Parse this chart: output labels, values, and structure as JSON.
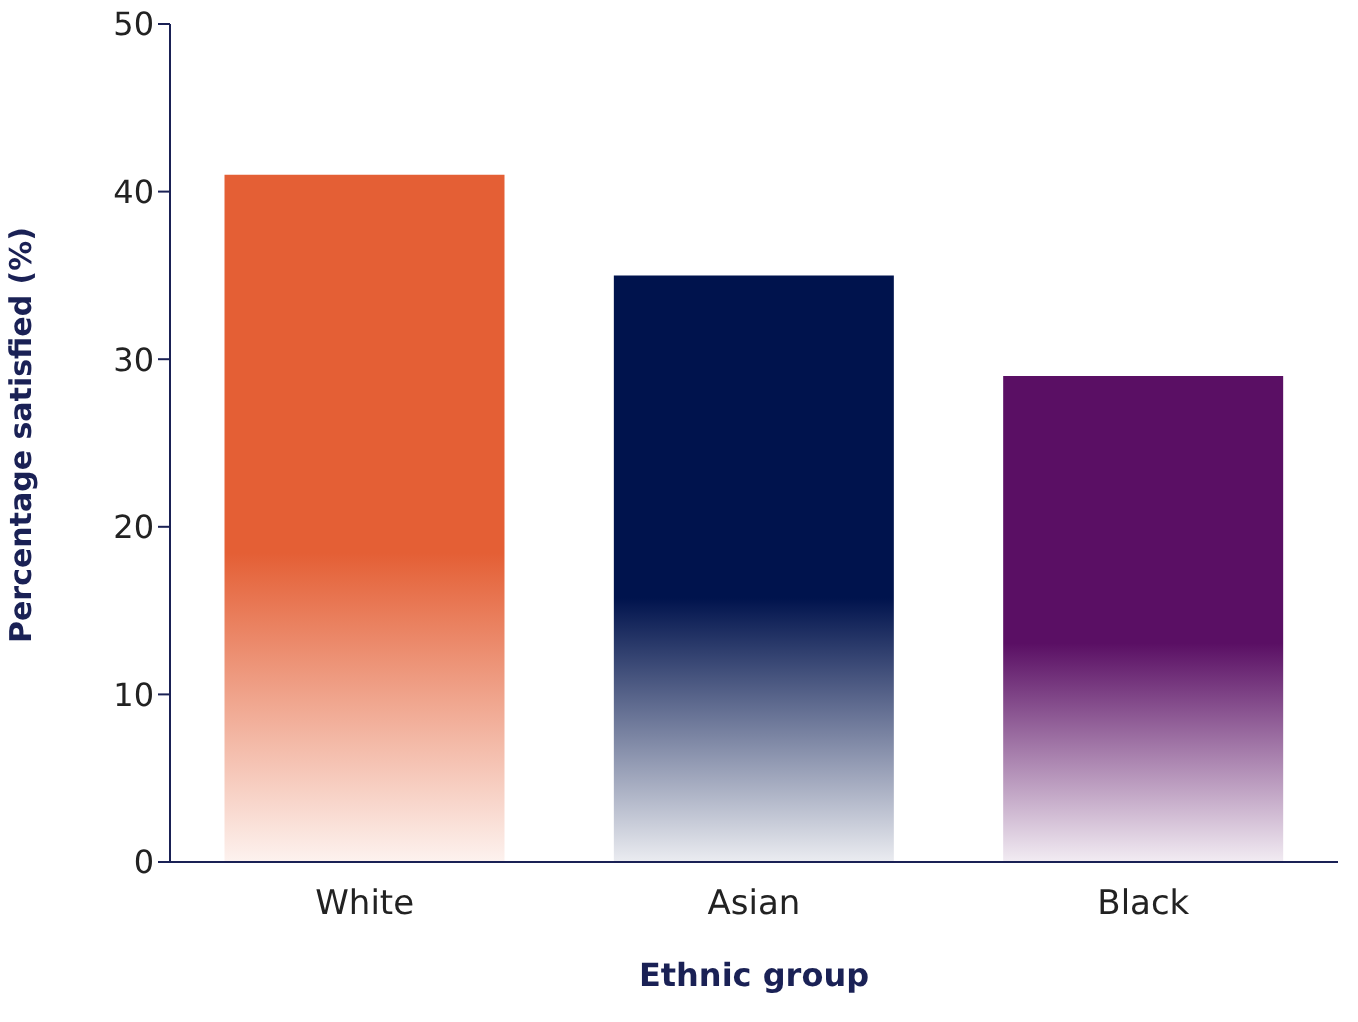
{
  "chart_data": {
    "type": "bar",
    "xlabel": "Ethnic group",
    "ylabel": "Percentage satisfied (%)",
    "categories": [
      "White",
      "Asian",
      "Black"
    ],
    "values": [
      41,
      35,
      29
    ],
    "colors": [
      "#e45f35",
      "#00134d",
      "#5a0f64"
    ],
    "ylim": [
      0,
      50
    ],
    "yticks": [
      0,
      10,
      20,
      30,
      40,
      50
    ],
    "grid": false,
    "legend": false
  }
}
